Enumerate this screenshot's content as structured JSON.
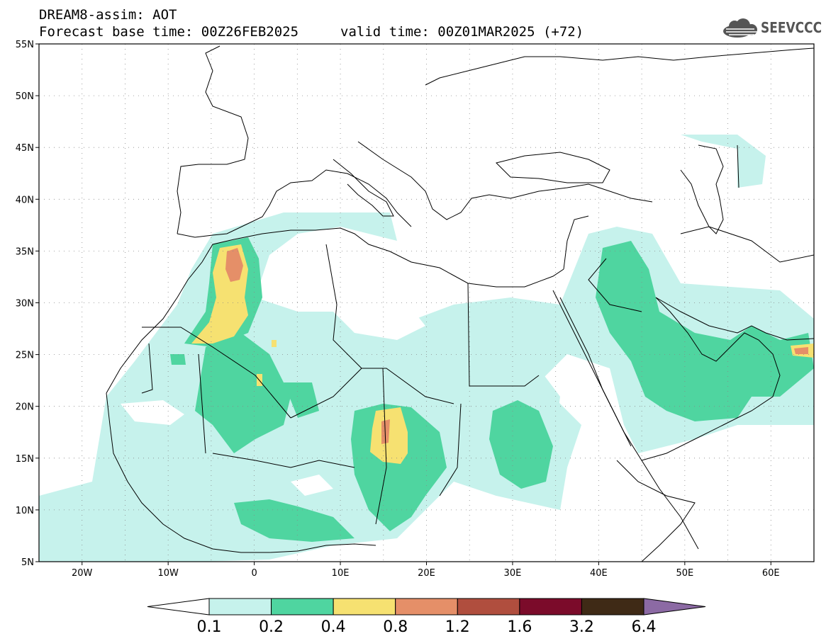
{
  "header": {
    "line1": "DREAM8-assim: AOT",
    "base_time": "Forecast base time: 00Z26FEB2025",
    "valid_time": "valid time: 00Z01MAR2025 (+72)",
    "logo_text": "SEEVCCC"
  },
  "map": {
    "lon_range": [
      -25,
      65
    ],
    "lat_range": [
      5,
      55
    ],
    "lat_ticks": [
      "55N",
      "50N",
      "45N",
      "40N",
      "35N",
      "30N",
      "25N",
      "20N",
      "15N",
      "10N",
      "5N"
    ],
    "lon_ticks": [
      "20W",
      "10W",
      "0",
      "10E",
      "20E",
      "30E",
      "40E",
      "50E",
      "60E"
    ],
    "grid": true
  },
  "colorbar": {
    "levels": [
      "0.1",
      "0.2",
      "0.4",
      "0.8",
      "1.2",
      "1.6",
      "3.2",
      "6.4"
    ],
    "colors": [
      "#c6f2ec",
      "#4fd5a0",
      "#f6e171",
      "#e58f68",
      "#b04e3e",
      "#7b0b2a",
      "#3f2a16"
    ],
    "under_color": "#ffffff",
    "over_color": "#8c6aa4"
  }
}
